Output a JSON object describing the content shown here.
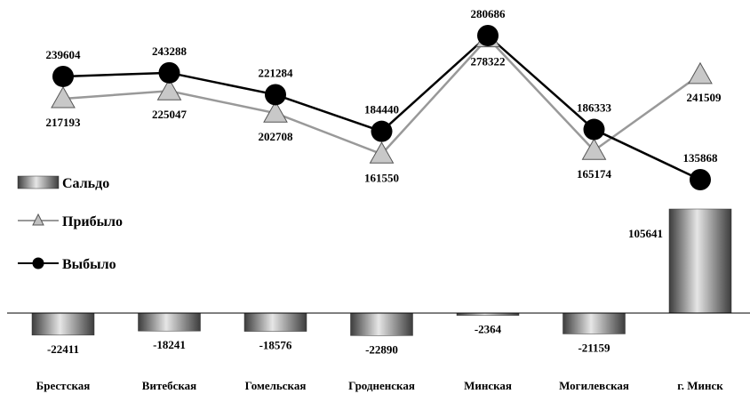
{
  "chart_data": {
    "type": "bar+line",
    "categories": [
      "Брестская",
      "Витебская",
      "Гомельская",
      "Гродненская",
      "Минская",
      "Могилевская",
      "г. Минск"
    ],
    "series": [
      {
        "name": "Сальдо",
        "kind": "bar",
        "values": [
          -22411,
          -18241,
          -18576,
          -22890,
          -2364,
          -21159,
          105641
        ],
        "color": "#666666"
      },
      {
        "name": "Прибыло",
        "kind": "line",
        "marker": "triangle",
        "values": [
          217193,
          225047,
          202708,
          161550,
          278322,
          165174,
          241509
        ],
        "color": "#999999"
      },
      {
        "name": "Выбыло",
        "kind": "line",
        "marker": "circle",
        "values": [
          239604,
          243288,
          221284,
          184440,
          280686,
          186333,
          135868
        ],
        "color": "#000000"
      }
    ],
    "legend": {
      "position": "left"
    }
  }
}
